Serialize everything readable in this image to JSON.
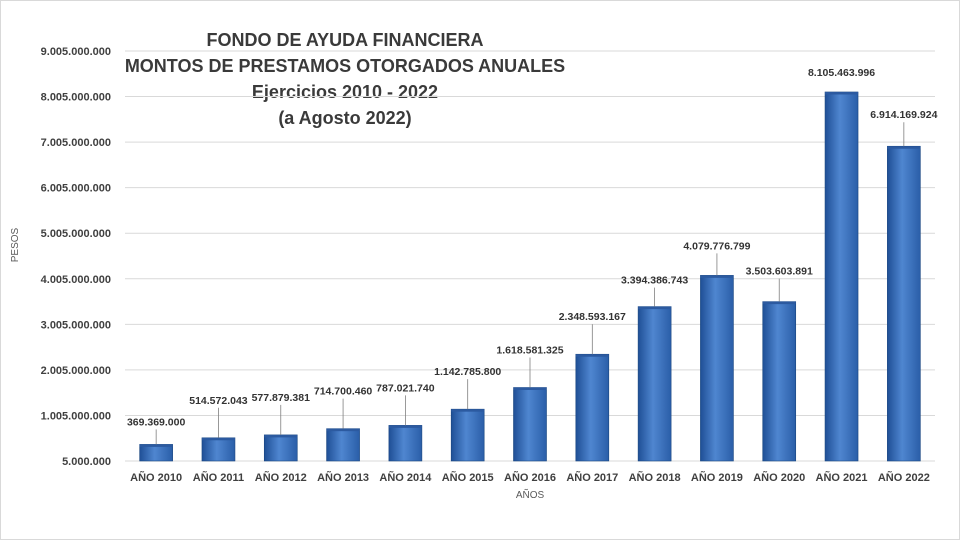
{
  "chart_data": {
    "type": "bar",
    "title_lines": [
      "FONDO DE AYUDA FINANCIERA",
      "MONTOS DE PRESTAMOS OTORGADOS ANUALES",
      "Ejercicios 2010 - 2022",
      "(a Agosto 2022)"
    ],
    "xlabel": "AÑOS",
    "ylabel": "PESOS",
    "categories": [
      "AÑO 2010",
      "AÑO 2011",
      "AÑO 2012",
      "AÑO 2013",
      "AÑO 2014",
      "AÑO 2015",
      "AÑO 2016",
      "AÑO 2017",
      "AÑO 2018",
      "AÑO 2019",
      "AÑO 2020",
      "AÑO 2021",
      "AÑO 2022"
    ],
    "values": [
      369369000,
      514572043,
      577879381,
      714700460,
      787021740,
      1142785800,
      1618581325,
      2348593167,
      3394386743,
      4079776799,
      3503603891,
      8105463996,
      6914169924
    ],
    "value_labels": [
      "369.369.000",
      "514.572.043",
      "577.879.381",
      "714.700.460",
      "787.021.740",
      "1.142.785.800",
      "1.618.581.325",
      "2.348.593.167",
      "3.394.386.743",
      "4.079.776.799",
      "3.503.603.891",
      "8.105.463.996",
      "6.914.169.924"
    ],
    "ylim": [
      5000000,
      9005000000
    ],
    "yticks": [
      5000000,
      1005000000,
      2005000000,
      3005000000,
      4005000000,
      5005000000,
      6005000000,
      7005000000,
      8005000000,
      9005000000
    ],
    "ytick_labels": [
      "5.000.000",
      "1.005.000.000",
      "2.005.000.000",
      "3.005.000.000",
      "4.005.000.000",
      "5.005.000.000",
      "6.005.000.000",
      "7.005.000.000",
      "8.005.000.000",
      "9.005.000.000"
    ],
    "grid": true,
    "bar_color": "#4a7fc8",
    "bar_color_dark": "#1f4f96"
  }
}
